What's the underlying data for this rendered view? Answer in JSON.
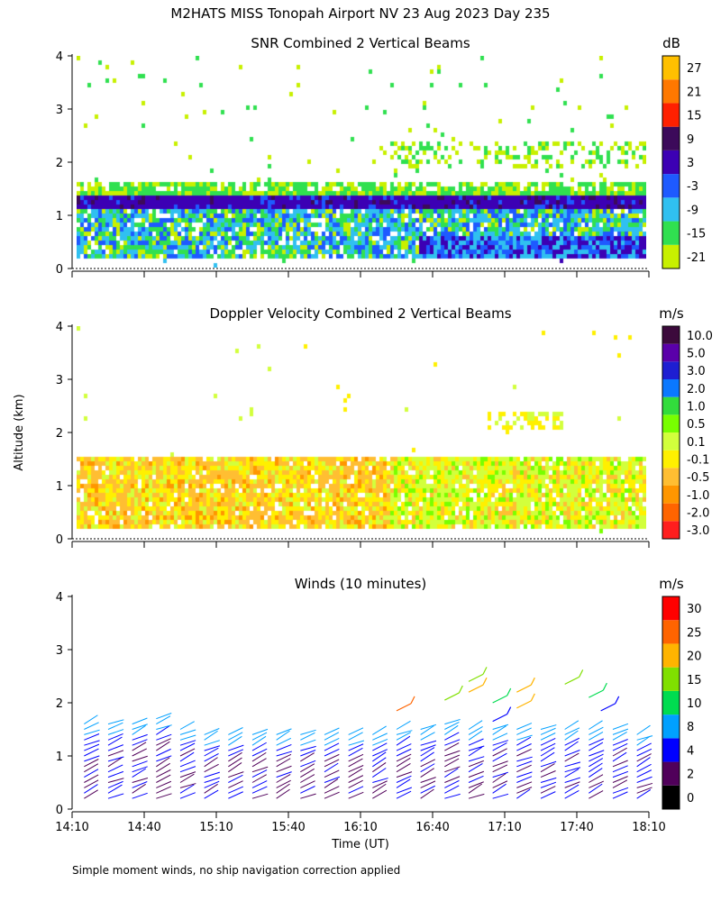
{
  "figure": {
    "title": "M2HATS MISS Tonopah Airport NV  23 Aug 2023 Day 235",
    "y_axis_label": "Altitude (km)",
    "x_axis_label": "Time (UT)",
    "footnote": "Simple moment winds, no ship navigation correction applied"
  },
  "chart_data": [
    {
      "type": "heatmap",
      "title": "SNR Combined 2 Vertical Beams",
      "xlim": [
        "14:10",
        "18:10"
      ],
      "ylim": [
        0,
        4
      ],
      "yticks": [
        "0",
        "1",
        "2",
        "3",
        "4"
      ],
      "colorbar": {
        "unit": "dB",
        "levels": [
          -21,
          -15,
          -9,
          -3,
          3,
          9,
          15,
          21,
          27
        ],
        "tick_labels": [
          "-21",
          "-15",
          "-9",
          "-3",
          "3",
          "9",
          "15",
          "21",
          "27"
        ],
        "colors": [
          "#c8f000",
          "#30e050",
          "#30c0f0",
          "#1e5aff",
          "#3c00b4",
          "#3c0a5a",
          "#ff2000",
          "#ff7800",
          "#ffc000"
        ]
      },
      "features": [
        {
          "description": "dense boundary-layer returns",
          "altitude_km": [
            0.15,
            1.4
          ],
          "time": [
            "14:10",
            "18:10"
          ],
          "dominant_db": [
            -15,
            -3
          ]
        },
        {
          "description": "strong layer near boundary-layer top",
          "altitude_km": [
            1.1,
            1.35
          ],
          "dominant_db": [
            0,
            6
          ]
        },
        {
          "description": "scattered weak returns aloft",
          "altitude_km": [
            1.5,
            3.8
          ],
          "dominant_db": [
            -21,
            -15
          ]
        }
      ]
    },
    {
      "type": "heatmap",
      "title": "Doppler Velocity Combined 2 Vertical Beams",
      "xlim": [
        "14:10",
        "18:10"
      ],
      "ylim": [
        0,
        4
      ],
      "yticks": [
        "0",
        "1",
        "2",
        "3",
        "4"
      ],
      "colorbar": {
        "unit": "m/s",
        "tick_labels": [
          "-3.0",
          "-2.0",
          "-1.0",
          "-0.5",
          "-0.1",
          "0.1",
          "0.5",
          "1.0",
          "2.0",
          "3.0",
          "5.0",
          "10.0"
        ],
        "colors": [
          "#ff1e1e",
          "#ff6400",
          "#ff9600",
          "#ffbe32",
          "#fff000",
          "#d2ff3c",
          "#78ff00",
          "#32dc3c",
          "#0a78ff",
          "#1e1ed2",
          "#5a00aa",
          "#3c0a3c"
        ]
      },
      "features": [
        {
          "description": "boundary-layer velocity field",
          "altitude_km": [
            0.15,
            1.5
          ],
          "time": [
            "14:10",
            "18:10"
          ],
          "dominant_m_s": [
            -0.5,
            0.1
          ]
        },
        {
          "description": "isolated returns aloft",
          "altitude_km": [
            2.0,
            3.8
          ]
        }
      ]
    },
    {
      "type": "scatter",
      "title": "Winds (10 minutes)",
      "xlim": [
        "14:10",
        "18:10"
      ],
      "ylim": [
        0,
        4
      ],
      "yticks": [
        "0",
        "1",
        "2",
        "3",
        "4"
      ],
      "xticks": [
        "14:10",
        "14:40",
        "15:10",
        "15:40",
        "16:10",
        "16:40",
        "17:10",
        "17:40",
        "18:10"
      ],
      "x_minutes_after_1410": [
        0,
        30,
        60,
        90,
        120,
        150,
        180,
        210,
        240
      ],
      "colorbar": {
        "unit": "m/s",
        "levels": [
          0,
          2,
          4,
          8,
          10,
          15,
          20,
          25,
          30
        ],
        "tick_labels": [
          "0",
          "2",
          "4",
          "8",
          "10",
          "15",
          "20",
          "25",
          "30"
        ],
        "colors": [
          "#000000",
          "#50005a",
          "#0000ff",
          "#00a0ff",
          "#00dc50",
          "#80e000",
          "#ffb400",
          "#ff6400",
          "#ff0000"
        ]
      },
      "profiles": {
        "times": [
          "14:15",
          "14:25",
          "14:35",
          "14:45",
          "14:55",
          "15:05",
          "15:15",
          "15:25",
          "15:35",
          "15:45",
          "15:55",
          "16:05",
          "16:15",
          "16:25",
          "16:35",
          "16:45",
          "16:55",
          "17:05",
          "17:15",
          "17:25",
          "17:35",
          "17:45",
          "17:55",
          "18:05"
        ],
        "top_km": [
          1.6,
          1.6,
          1.6,
          1.7,
          1.5,
          1.4,
          1.4,
          1.4,
          1.4,
          1.4,
          1.4,
          1.4,
          1.4,
          1.5,
          1.5,
          1.6,
          1.5,
          1.5,
          1.5,
          1.5,
          1.5,
          1.5,
          1.5,
          1.4
        ],
        "aloft": [
          {
            "time": "16:25",
            "altitude_km": 1.85,
            "speed_m_s": 26
          },
          {
            "time": "16:45",
            "altitude_km": 2.05,
            "speed_m_s": 18
          },
          {
            "time": "16:55",
            "altitude_km": 2.4,
            "speed_m_s": 18
          },
          {
            "time": "16:55",
            "altitude_km": 2.2,
            "speed_m_s": 22
          },
          {
            "time": "17:05",
            "altitude_km": 2.0,
            "speed_m_s": 14
          },
          {
            "time": "17:05",
            "altitude_km": 1.65,
            "speed_m_s": 6
          },
          {
            "time": "17:15",
            "altitude_km": 2.2,
            "speed_m_s": 21
          },
          {
            "time": "17:15",
            "altitude_km": 1.9,
            "speed_m_s": 20
          },
          {
            "time": "17:35",
            "altitude_km": 2.35,
            "speed_m_s": 16
          },
          {
            "time": "17:45",
            "altitude_km": 2.1,
            "speed_m_s": 14
          },
          {
            "time": "17:50",
            "altitude_km": 1.85,
            "speed_m_s": 4
          }
        ]
      }
    }
  ]
}
